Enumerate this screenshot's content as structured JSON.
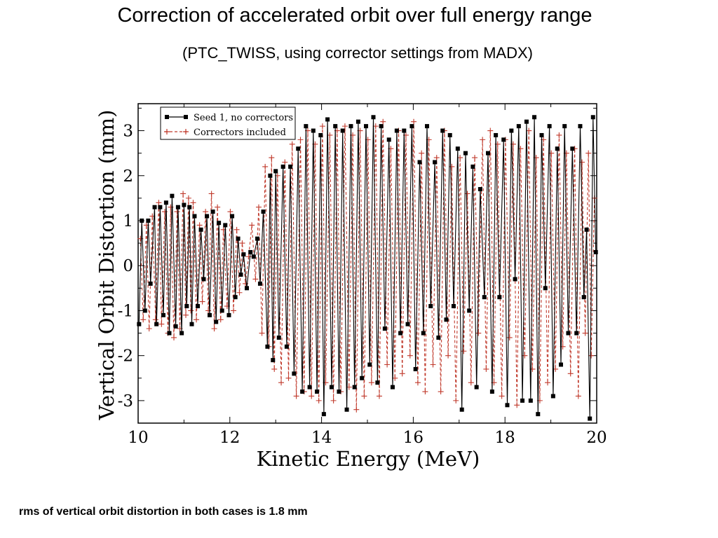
{
  "slide": {
    "title": "Correction of accelerated orbit over full energy range",
    "subtitle": "(PTC_TWISS, using corrector settings from MADX)",
    "footnote": "rms of vertical orbit distortion in both cases is 1.8 mm"
  },
  "colors": {
    "seed": "#000000",
    "corrected": "#c0392b",
    "frame": "#000000",
    "background": "#ffffff"
  },
  "chart_data": {
    "type": "line",
    "xlabel": "Kinetic Energy (MeV)",
    "ylabel": "Vertical Orbit Distortion (mm)",
    "xlim": [
      10,
      20
    ],
    "ylim": [
      -3.5,
      3.6
    ],
    "xticks": [
      10,
      12,
      14,
      16,
      18,
      20
    ],
    "yticks": [
      -3,
      -2,
      -1,
      0,
      1,
      2,
      3
    ],
    "grid": false,
    "legend_position": "top-left",
    "series": [
      {
        "name": "Seed 1, no correctors",
        "style": "solid",
        "marker": "filled-square",
        "color": "#000000",
        "x": [
          10.02,
          10.08,
          10.15,
          10.22,
          10.27,
          10.36,
          10.4,
          10.48,
          10.55,
          10.61,
          10.68,
          10.74,
          10.82,
          10.87,
          10.95,
          11.0,
          11.06,
          11.12,
          11.17,
          11.23,
          11.3,
          11.37,
          11.43,
          11.5,
          11.56,
          11.63,
          11.7,
          11.76,
          11.83,
          11.9,
          11.98,
          12.05,
          12.12,
          12.18,
          12.24,
          12.3,
          12.37,
          12.45,
          12.52,
          12.6,
          12.66,
          12.73,
          12.82,
          12.88,
          12.94,
          13.0,
          13.07,
          13.16,
          13.24,
          13.32,
          13.4,
          13.49,
          13.58,
          13.66,
          13.74,
          13.82,
          13.9,
          13.98,
          14.05,
          14.13,
          14.22,
          14.3,
          14.38,
          14.46,
          14.55,
          14.64,
          14.72,
          14.8,
          14.88,
          14.97,
          15.05,
          15.13,
          15.22,
          15.3,
          15.38,
          15.47,
          15.55,
          15.64,
          15.72,
          15.8,
          15.88,
          15.97,
          16.05,
          16.14,
          16.22,
          16.3,
          16.38,
          16.47,
          16.55,
          16.64,
          16.72,
          16.8,
          16.88,
          16.97,
          17.06,
          17.14,
          17.22,
          17.3,
          17.38,
          17.46,
          17.55,
          17.63,
          17.72,
          17.8,
          17.88,
          17.97,
          18.05,
          18.14,
          18.22,
          18.3,
          18.38,
          18.47,
          18.56,
          18.64,
          18.72,
          18.8,
          18.88,
          18.97,
          19.05,
          19.14,
          19.22,
          19.3,
          19.38,
          19.47,
          19.56,
          19.64,
          19.72,
          19.78,
          19.85,
          19.92,
          19.98
        ],
        "y": [
          -1.3,
          1.0,
          -1.0,
          1.0,
          -0.4,
          1.3,
          -1.3,
          1.3,
          -1.1,
          1.4,
          -1.5,
          1.55,
          -1.35,
          1.3,
          -1.5,
          1.35,
          -0.9,
          1.3,
          -1.3,
          1.1,
          -0.9,
          0.8,
          -0.3,
          1.1,
          -1.1,
          1.2,
          -1.25,
          0.95,
          -1.0,
          0.9,
          -1.1,
          1.1,
          -0.7,
          0.6,
          -0.2,
          0.25,
          -0.5,
          0.3,
          0.2,
          0.6,
          -0.4,
          1.2,
          -1.8,
          2.0,
          -2.1,
          2.1,
          -1.6,
          2.2,
          -1.8,
          2.2,
          -2.4,
          2.6,
          -2.8,
          3.1,
          -2.7,
          3.0,
          -2.8,
          2.9,
          -3.3,
          3.25,
          -2.7,
          3.1,
          -2.8,
          3.0,
          -3.2,
          3.1,
          -2.7,
          3.2,
          -2.5,
          3.1,
          -2.2,
          3.3,
          -2.6,
          3.1,
          -1.4,
          2.8,
          -2.7,
          3.0,
          -1.5,
          3.0,
          -1.3,
          3.1,
          -2.3,
          2.3,
          -1.5,
          3.1,
          -0.9,
          2.3,
          -1.6,
          3.0,
          -1.2,
          2.9,
          -0.9,
          2.6,
          -3.2,
          2.5,
          -1.0,
          2.2,
          -2.7,
          1.7,
          -0.7,
          2.5,
          -2.8,
          2.9,
          -0.7,
          2.8,
          -3.1,
          3.0,
          -0.3,
          3.1,
          -3.0,
          3.2,
          -3.0,
          3.3,
          -3.3,
          2.9,
          -0.5,
          3.1,
          -2.9,
          2.6,
          -2.2,
          3.1,
          -1.5,
          2.6,
          -1.5,
          3.1,
          -0.7,
          0.8,
          -3.4,
          3.3,
          0.3
        ]
      },
      {
        "name": "Correctors included",
        "style": "dashed",
        "marker": "plus",
        "color": "#c0392b",
        "x": [
          10.05,
          10.11,
          10.18,
          10.24,
          10.31,
          10.38,
          10.45,
          10.51,
          10.58,
          10.65,
          10.71,
          10.78,
          10.85,
          10.91,
          10.98,
          11.04,
          11.1,
          11.15,
          11.2,
          11.27,
          11.34,
          11.4,
          11.47,
          11.53,
          11.6,
          11.66,
          11.73,
          11.8,
          11.86,
          11.94,
          12.01,
          12.08,
          12.15,
          12.21,
          12.27,
          12.34,
          12.41,
          12.48,
          12.56,
          12.63,
          12.7,
          12.77,
          12.85,
          12.91,
          12.97,
          13.04,
          13.12,
          13.2,
          13.28,
          13.36,
          13.45,
          13.54,
          13.62,
          13.7,
          13.78,
          13.86,
          13.94,
          14.02,
          14.09,
          14.18,
          14.26,
          14.34,
          14.42,
          14.51,
          14.6,
          14.68,
          14.76,
          14.84,
          14.93,
          15.01,
          15.09,
          15.18,
          15.26,
          15.34,
          15.43,
          15.51,
          15.6,
          15.68,
          15.76,
          15.84,
          15.93,
          16.01,
          16.1,
          16.18,
          16.26,
          16.34,
          16.43,
          16.51,
          16.6,
          16.68,
          16.76,
          16.84,
          16.93,
          17.02,
          17.1,
          17.18,
          17.26,
          17.34,
          17.42,
          17.51,
          17.59,
          17.68,
          17.76,
          17.84,
          17.93,
          18.01,
          18.1,
          18.18,
          18.26,
          18.34,
          18.43,
          18.52,
          18.6,
          18.68,
          18.76,
          18.84,
          18.93,
          19.01,
          19.1,
          19.18,
          19.26,
          19.34,
          19.43,
          19.52,
          19.6,
          19.68,
          19.75,
          19.82,
          19.88,
          19.95
        ],
        "y": [
          0.6,
          -1.2,
          0.9,
          -1.4,
          1.1,
          -1.2,
          1.4,
          -1.3,
          1.2,
          -1.5,
          1.3,
          -1.6,
          1.2,
          -1.4,
          1.6,
          -1.1,
          1.5,
          -1.0,
          1.4,
          -1.2,
          0.9,
          -0.8,
          1.2,
          -1.0,
          1.6,
          -1.4,
          1.3,
          -1.2,
          0.8,
          -0.9,
          1.2,
          -1.0,
          0.8,
          -0.6,
          0.5,
          -0.4,
          0.2,
          0.9,
          -0.3,
          1.3,
          -1.5,
          2.2,
          -1.8,
          2.4,
          -2.3,
          2.0,
          -2.6,
          2.3,
          -2.5,
          2.7,
          -2.9,
          2.8,
          -2.8,
          3.0,
          -2.9,
          2.7,
          -3.0,
          3.1,
          -2.6,
          2.9,
          -3.0,
          3.0,
          -2.8,
          3.1,
          -2.7,
          2.9,
          -3.2,
          3.0,
          -2.9,
          2.8,
          -2.6,
          3.1,
          -2.9,
          3.2,
          -2.2,
          2.6,
          -2.5,
          3.0,
          -2.4,
          2.9,
          -2.0,
          3.2,
          -2.6,
          2.5,
          -2.8,
          2.8,
          -2.2,
          2.4,
          -2.8,
          3.0,
          -2.0,
          2.2,
          -3.0,
          2.4,
          -1.9,
          1.6,
          -2.6,
          2.4,
          -1.5,
          2.8,
          -2.3,
          3.0,
          -2.6,
          2.7,
          -2.9,
          2.8,
          -1.6,
          2.7,
          -3.1,
          2.6,
          -2.0,
          3.0,
          -2.3,
          2.4,
          -3.0,
          2.8,
          -2.6,
          2.5,
          -2.3,
          2.9,
          -1.8,
          2.5,
          -2.4,
          2.6,
          -2.9,
          2.3,
          -1.5,
          2.5,
          -2.0,
          1.5
        ]
      }
    ]
  }
}
